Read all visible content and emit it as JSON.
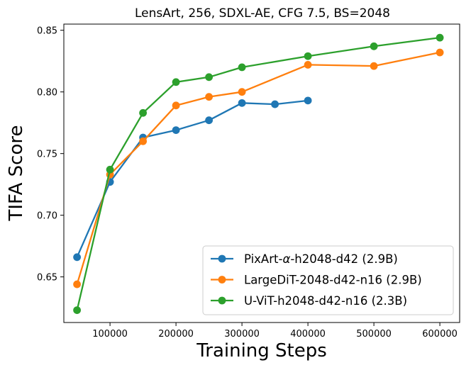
{
  "chart_data": {
    "type": "line",
    "title": "LensArt, 256, SDXL-AE, CFG 7.5, BS=2048",
    "xlabel": "Training Steps",
    "ylabel": "TIFA Score",
    "xlim": [
      30000,
      630000
    ],
    "ylim": [
      0.613,
      0.855
    ],
    "xticks": [
      100000,
      200000,
      300000,
      400000,
      500000,
      600000
    ],
    "xtick_labels": [
      "100000",
      "200000",
      "300000",
      "400000",
      "500000",
      "600000"
    ],
    "yticks": [
      0.65,
      0.7,
      0.75,
      0.8,
      0.85
    ],
    "ytick_labels": [
      "0.65",
      "0.70",
      "0.75",
      "0.80",
      "0.85"
    ],
    "grid": false,
    "legend_position": "lower-right",
    "series": [
      {
        "name": "PixArt-α-h2048-d42 (2.9B)",
        "legend_prefix": "PixArt-",
        "legend_greek": "α",
        "legend_suffix": "-h2048-d42 (2.9B)",
        "color": "#1f77b4",
        "x": [
          50000,
          100000,
          150000,
          200000,
          250000,
          300000,
          350000,
          400000
        ],
        "y": [
          0.666,
          0.727,
          0.763,
          0.769,
          0.777,
          0.791,
          0.79,
          0.793
        ]
      },
      {
        "name": "LargeDiT-2048-d42-n16 (2.9B)",
        "color": "#ff7f0e",
        "x": [
          50000,
          100000,
          150000,
          200000,
          250000,
          300000,
          400000,
          500000,
          600000
        ],
        "y": [
          0.644,
          0.733,
          0.76,
          0.789,
          0.796,
          0.8,
          0.822,
          0.821,
          0.832
        ]
      },
      {
        "name": "U-ViT-h2048-d42-n16 (2.3B)",
        "color": "#2ca02c",
        "x": [
          50000,
          100000,
          150000,
          200000,
          250000,
          300000,
          400000,
          500000,
          600000
        ],
        "y": [
          0.623,
          0.737,
          0.783,
          0.808,
          0.812,
          0.82,
          0.829,
          0.837,
          0.844
        ]
      }
    ]
  }
}
